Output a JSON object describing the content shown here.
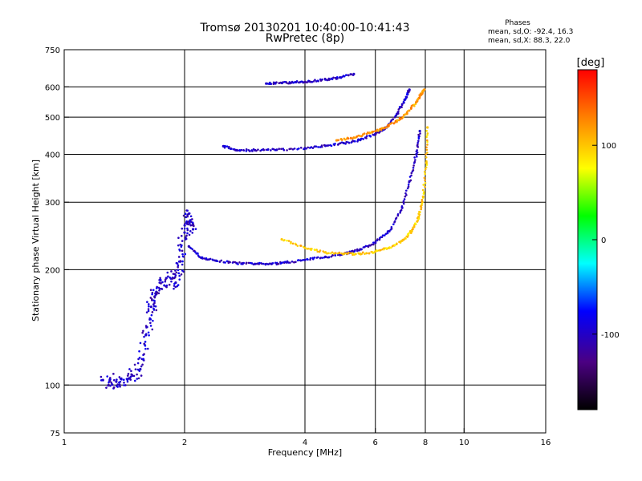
{
  "chart_data": {
    "type": "scatter",
    "title": "Tromsø 20130201 10:40:00-10:41:43",
    "subtitle": "RwPretec (8p)",
    "xlabel": "Frequency [MHz]",
    "ylabel": "Stationary phase Virtual Height [km]",
    "x_scale": "log",
    "y_scale": "log",
    "xlim": [
      1,
      16
    ],
    "ylim": [
      75,
      750
    ],
    "x_ticks": [
      1,
      2,
      4,
      6,
      8,
      10,
      16
    ],
    "y_ticks": [
      75,
      100,
      200,
      300,
      400,
      500,
      600,
      750
    ],
    "grid_x": [
      2,
      4,
      6,
      8,
      10
    ],
    "grid_y": [
      100,
      200,
      300,
      400,
      500,
      600
    ],
    "annotation": {
      "title": "Phases",
      "line1": "mean, sd,O:  -92.4, 16.3",
      "line2": "mean, sd,X:  88.3, 22.0"
    },
    "colorbar": {
      "label": "[deg]",
      "min": -180,
      "max": 180,
      "ticks": [
        100,
        0,
        -100
      ],
      "colors": [
        "#000000",
        "#4b0082",
        "#0000ff",
        "#00ffff",
        "#00ff00",
        "#ffff00",
        "#ff8000",
        "#ff0000"
      ]
    },
    "series": [
      {
        "trace": "O-lower-F-trace",
        "phase": -100,
        "x": [
          2.05,
          2.2,
          2.4,
          2.7,
          3.0,
          3.3,
          3.6,
          4.0,
          4.5,
          5.0,
          5.5,
          6.0,
          6.5,
          7.0,
          7.3,
          7.6,
          7.75
        ],
        "y": [
          230,
          215,
          211,
          208,
          207,
          207,
          209,
          212,
          216,
          220,
          226,
          235,
          252,
          290,
          340,
          400,
          460
        ]
      },
      {
        "trace": "X-lower-F-trace",
        "phase": 100,
        "x": [
          3.5,
          4.0,
          4.5,
          5.0,
          5.5,
          6.0,
          6.5,
          7.0,
          7.4,
          7.7,
          7.9,
          8.05,
          8.1
        ],
        "y": [
          240,
          228,
          222,
          220,
          220,
          223,
          228,
          238,
          252,
          275,
          310,
          380,
          470
        ]
      },
      {
        "trace": "O-upper-F-trace",
        "phase": -100,
        "x": [
          2.5,
          2.7,
          3.0,
          3.4,
          4.0,
          4.5,
          5.0,
          5.5,
          6.0,
          6.4,
          6.8,
          7.1,
          7.3
        ],
        "y": [
          420,
          410,
          410,
          411,
          415,
          421,
          428,
          436,
          452,
          470,
          510,
          555,
          590
        ]
      },
      {
        "trace": "X-upper-F-trace",
        "phase": 120,
        "x": [
          4.8,
          5.3,
          5.8,
          6.3,
          6.8,
          7.2,
          7.6,
          7.8,
          7.95
        ],
        "y": [
          435,
          442,
          455,
          468,
          490,
          512,
          548,
          572,
          590
        ]
      },
      {
        "trace": "top-echo-trace",
        "phase": -100,
        "x": [
          3.2,
          3.5,
          3.8,
          4.1,
          4.5,
          4.9,
          5.3
        ],
        "y": [
          612,
          614,
          617,
          620,
          627,
          635,
          648
        ]
      },
      {
        "trace": "E-region-cloud",
        "phase": -100,
        "x": [
          1.25,
          1.35,
          1.45,
          1.55,
          1.6,
          1.65,
          1.7,
          1.8,
          1.9,
          1.95,
          2.0,
          2.05,
          2.1
        ],
        "y": [
          103,
          102,
          104,
          110,
          135,
          160,
          175,
          190,
          185,
          210,
          250,
          280,
          255
        ]
      }
    ]
  }
}
